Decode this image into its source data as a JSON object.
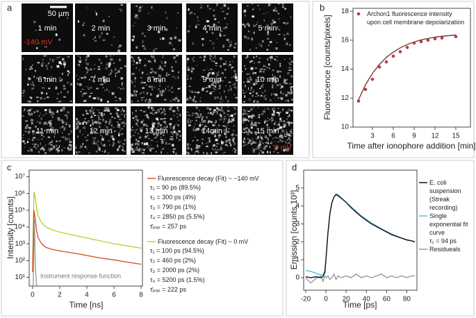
{
  "panel_labels": [
    "a",
    "b",
    "c",
    "d"
  ],
  "image_grid": {
    "scale_bar": "50 µm",
    "start_voltage": "-140 mV",
    "end_voltage": "0 mV",
    "frames": [
      "1 min",
      "2 min",
      "3 min",
      "4 min",
      "5 min",
      "6 min",
      "7 min",
      "8 min",
      "9 min",
      "10 min",
      "11 min",
      "12 min",
      "13 min",
      "14min",
      "15 min"
    ]
  },
  "chart_data": [
    {
      "type": "line",
      "x_label": "Time after ionophore addition [min]",
      "y_label": "Fluorescence [counts/pixels]",
      "x": [
        1,
        2,
        3,
        4,
        5,
        6,
        7,
        8,
        9,
        10,
        11,
        12,
        13,
        15
      ],
      "series": [
        {
          "name": "Archon1 fluorescence intensity upon cell membrane depolarization",
          "color": "#b5395a",
          "mode": "markers",
          "values": [
            11.8,
            12.6,
            13.3,
            14.15,
            14.5,
            14.9,
            15.2,
            15.5,
            15.8,
            15.9,
            16.0,
            16.1,
            16.15,
            16.25
          ]
        },
        {
          "color": "#7a3b2e",
          "mode": "line",
          "values": [
            11.9,
            12.92,
            13.71,
            14.33,
            14.81,
            15.18,
            15.47,
            15.7,
            15.88,
            16.02,
            16.12,
            16.21,
            16.27,
            16.36
          ]
        }
      ],
      "xlim": [
        0.2,
        17.1
      ],
      "xticks": [
        3,
        6,
        9,
        12,
        15
      ],
      "ylim": [
        10,
        18.2
      ],
      "yticks": [
        10,
        12,
        14,
        16,
        18
      ]
    },
    {
      "type": "line",
      "x_label": "Time [ns]",
      "y_label": "Intensity [counts]",
      "log_y": true,
      "annotation": "Instrument response function",
      "x": [
        0,
        0.1,
        0.2,
        0.3,
        0.4,
        0.6,
        0.8,
        1,
        1.5,
        2,
        3,
        4,
        5,
        6,
        7,
        8
      ],
      "series": [
        {
          "name": "Fluorescence decay (Fit) ~ −140 mV",
          "color": "#d9542c",
          "mode": "line",
          "details": [
            "τ₁ = 90 ps (89.5%)",
            "τ₂ = 300 ps (4%)",
            "τ₃ = 790 ps (1%)",
            "τ₄ = 2850 ps (5.5%)",
            "τ̄ₚₒₚ = 257 ps"
          ],
          "values": [
            20,
            100000,
            30000,
            6000,
            2500,
            1200,
            800,
            600,
            450,
            380,
            280,
            200,
            140,
            110,
            80,
            60
          ]
        },
        {
          "name": "Fluorescence decay (Fit) ~ 0 mV",
          "color": "#b5d334",
          "mode": "line",
          "details": [
            "τ₁ = 100 ps (94.5%)",
            "τ₂ = 460 ps (2%)",
            "τ₃ = 2000 ps (2%)",
            "τ₄ = 5200 ps (1.5%)",
            "τ̄ₚₒₚ = 222 ps"
          ],
          "values": [
            50,
            1300000,
            600000,
            120000,
            50000,
            22000,
            14000,
            10000,
            6500,
            5000,
            3300,
            2200,
            1500,
            1000,
            750,
            550
          ]
        },
        {
          "color": "#999999",
          "mode": "line",
          "x": [
            0.05,
            0.12,
            0.15,
            0.2,
            0.3
          ],
          "values": [
            3,
            30000,
            8000,
            50,
            3
          ]
        }
      ],
      "xlim": [
        -0.25,
        8.1
      ],
      "xticks": [
        0,
        2,
        4,
        6,
        8
      ],
      "ylim": [
        3,
        25000000
      ],
      "yticks": [
        {
          "value": 10,
          "label": "10¹"
        },
        {
          "value": 100,
          "label": "10²"
        },
        {
          "value": 1000,
          "label": "10³"
        },
        {
          "value": 10000,
          "label": "10⁴"
        },
        {
          "value": 100000,
          "label": "10⁵"
        },
        {
          "value": 1000000,
          "label": "10⁶"
        },
        {
          "value": 10000000,
          "label": "10⁷"
        }
      ]
    },
    {
      "type": "line",
      "x_label": "Time [ps]",
      "y_label": "Emission [counts,10³]",
      "x": [
        -20,
        -15,
        -10,
        -5,
        -3,
        -1,
        0,
        2,
        4,
        6,
        8,
        10,
        12,
        15,
        20,
        25,
        30,
        35,
        40,
        45,
        50,
        55,
        60,
        65,
        70,
        75,
        80,
        85,
        88
      ],
      "series": [
        {
          "name": "E. coli suspension (Streak recording)",
          "color": "#111111",
          "mode": "line",
          "values": [
            0.05,
            0.0,
            0.05,
            0.0,
            0.05,
            0.3,
            1.0,
            2.5,
            3.6,
            4.2,
            4.5,
            4.65,
            4.6,
            4.45,
            4.2,
            3.9,
            3.65,
            3.4,
            3.2,
            3.0,
            2.85,
            2.7,
            2.55,
            2.4,
            2.3,
            2.2,
            2.1,
            2.05,
            2.0
          ]
        },
        {
          "name": "Single exponential fit curve",
          "color": "#5bb8e0",
          "mode": "line",
          "details": [
            "τ₁ = 94 ps"
          ],
          "values": [
            0.4,
            0.35,
            0.25,
            0.15,
            0.15,
            0.4,
            1.0,
            2.5,
            3.6,
            4.2,
            4.5,
            4.6,
            4.55,
            4.42,
            4.2,
            3.95,
            3.7,
            3.45,
            3.25,
            3.05,
            2.9,
            2.72,
            2.58,
            2.44,
            2.32,
            2.22,
            2.12,
            2.05,
            2.0
          ]
        },
        {
          "name": "Residueals",
          "color": "#999999",
          "mode": "line",
          "values": [
            0.0,
            -0.3,
            -0.05,
            0.1,
            -0.2,
            0.1,
            0.0,
            0.1,
            -0.1,
            0.0,
            0.2,
            -0.1,
            0.1,
            0.0,
            0.1,
            0.0,
            0.2,
            0.0,
            0.1,
            0.0,
            0.1,
            0.2,
            0.0,
            0.1,
            0.0,
            0.1,
            0.0,
            0.1,
            0.1
          ]
        }
      ],
      "xlim": [
        -22,
        90
      ],
      "xticks": [
        -20,
        0,
        20,
        40,
        60,
        80
      ],
      "ylim": [
        -0.7,
        6
      ],
      "yticks": [
        0,
        1,
        2,
        3,
        4,
        5
      ]
    }
  ]
}
